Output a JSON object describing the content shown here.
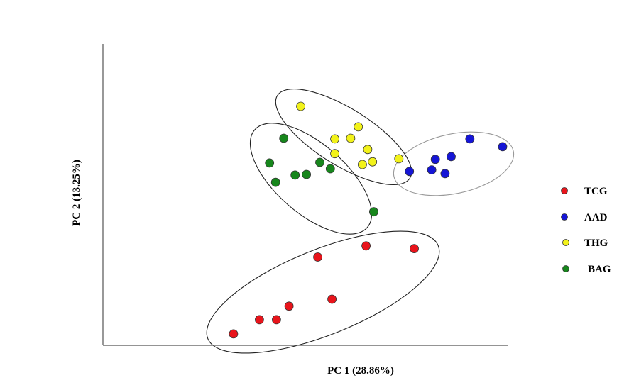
{
  "chart_data": {
    "type": "scatter",
    "title": "",
    "xlabel": "PC 1 (28.86%)",
    "ylabel": "PC 2 (13.25%)",
    "xlim": [
      0,
      100
    ],
    "ylim": [
      0,
      100
    ],
    "ticks_shown": false,
    "grid": false,
    "legend_position": "right",
    "series": [
      {
        "name": "TCG",
        "color": "#e8141b",
        "points": [
          [
            32.2,
            3.8
          ],
          [
            38.6,
            8.5
          ],
          [
            42.8,
            8.5
          ],
          [
            45.9,
            13.0
          ],
          [
            53.0,
            29.3
          ],
          [
            56.5,
            15.3
          ],
          [
            64.9,
            33.0
          ],
          [
            76.8,
            32.1
          ]
        ]
      },
      {
        "name": "AAD",
        "color": "#1515d6",
        "points": [
          [
            75.6,
            57.7
          ],
          [
            81.1,
            58.2
          ],
          [
            84.4,
            57.0
          ],
          [
            82.0,
            61.7
          ],
          [
            85.9,
            62.6
          ],
          [
            90.5,
            68.5
          ],
          [
            98.6,
            65.9
          ]
        ]
      },
      {
        "name": "THG",
        "color": "#f2f21a",
        "points": [
          [
            48.8,
            79.3
          ],
          [
            57.2,
            63.6
          ],
          [
            57.2,
            68.5
          ],
          [
            61.1,
            68.7
          ],
          [
            63.0,
            72.5
          ],
          [
            65.3,
            65.0
          ],
          [
            64.0,
            60.0
          ],
          [
            66.5,
            60.9
          ],
          [
            73.0,
            61.9
          ]
        ]
      },
      {
        "name": "BAG",
        "color": "#17861c",
        "points": [
          [
            44.6,
            68.7
          ],
          [
            41.1,
            60.5
          ],
          [
            42.6,
            54.1
          ],
          [
            47.4,
            56.5
          ],
          [
            50.2,
            56.7
          ],
          [
            53.5,
            60.7
          ],
          [
            56.1,
            58.6
          ],
          [
            66.8,
            44.3
          ]
        ]
      }
    ],
    "annotations": [
      "confidence ellipse around each group"
    ]
  }
}
